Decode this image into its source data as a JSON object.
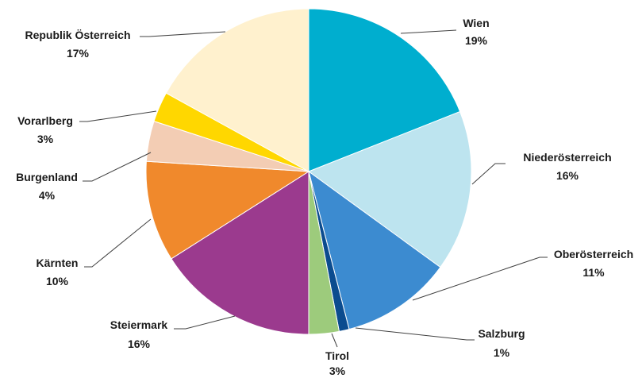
{
  "chart_data": {
    "type": "pie",
    "title": "",
    "slices": [
      {
        "name": "Wien",
        "label": "19%",
        "value": 19,
        "color": "#00AECF"
      },
      {
        "name": "Niederösterreich",
        "label": "16%",
        "value": 16,
        "color": "#BDE4EF"
      },
      {
        "name": "Oberösterreich",
        "label": "11%",
        "value": 11,
        "color": "#3C8BD0"
      },
      {
        "name": "Salzburg",
        "label": "1%",
        "value": 1,
        "color": "#0B4C8F"
      },
      {
        "name": "Tirol",
        "label": "3%",
        "value": 3,
        "color": "#9DCB7C"
      },
      {
        "name": "Steiermark",
        "label": "16%",
        "value": 16,
        "color": "#9B3A8E"
      },
      {
        "name": "Kärnten",
        "label": "10%",
        "value": 10,
        "color": "#F0892C"
      },
      {
        "name": "Burgenland",
        "label": "4%",
        "value": 4,
        "color": "#F3CDB4"
      },
      {
        "name": "Vorarlberg",
        "label": "3%",
        "value": 3,
        "color": "#FFD700"
      },
      {
        "name": "Republik Österreich",
        "label": "17%",
        "value": 17,
        "color": "#FFF1CE"
      }
    ]
  }
}
